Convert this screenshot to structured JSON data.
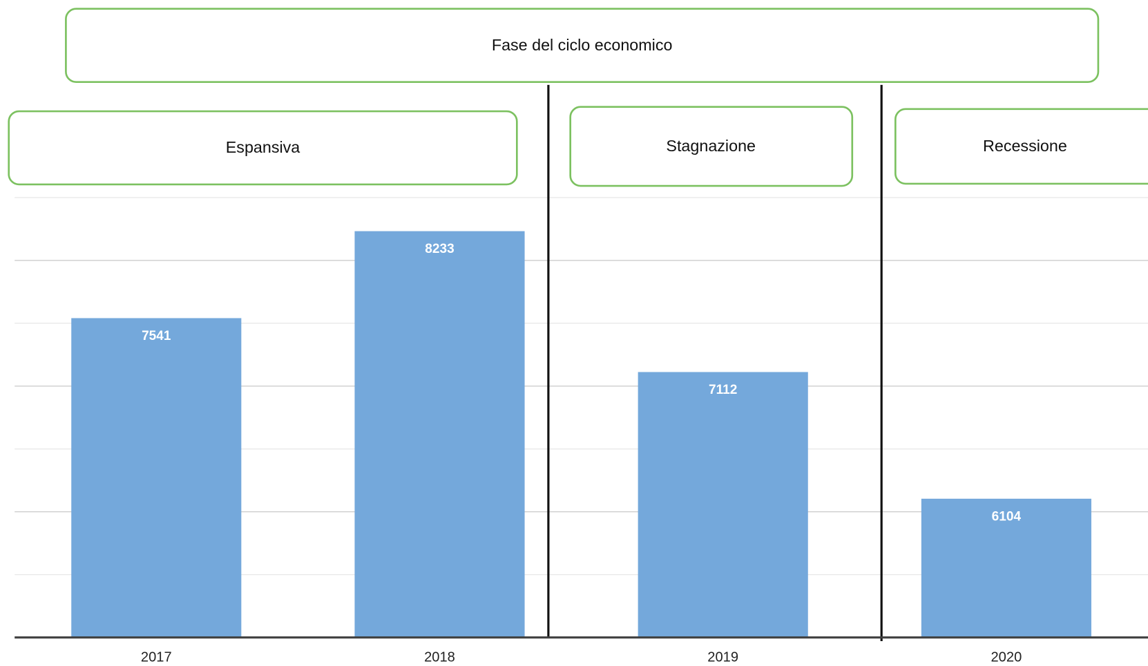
{
  "chart_data": {
    "type": "bar",
    "title": "Fase del ciclo economico",
    "phases": [
      "Espansiva",
      "Stagnazione",
      "Recessione"
    ],
    "categories": [
      "2017",
      "2018",
      "2019",
      "2020"
    ],
    "values": [
      7541,
      8233,
      7112,
      6104
    ],
    "color": "#74a8db",
    "ylim": [
      5000,
      8500
    ],
    "yticks": [
      5000,
      5500,
      6000,
      6500,
      7000,
      7500,
      8000,
      8500
    ],
    "grid": true
  }
}
